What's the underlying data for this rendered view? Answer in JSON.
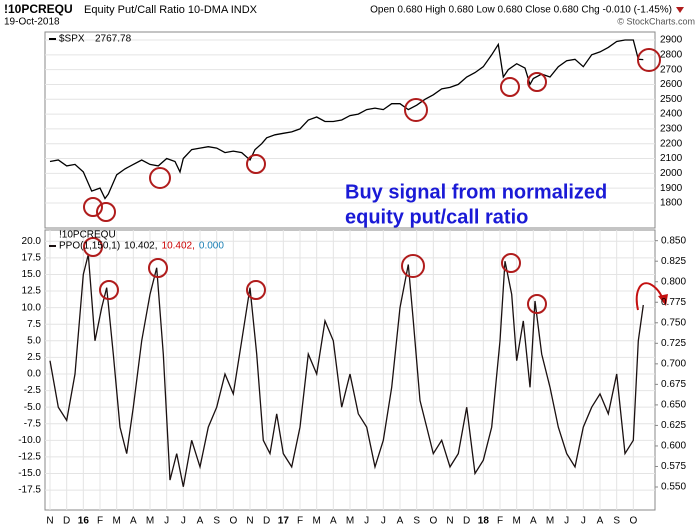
{
  "header": {
    "symbol": "!10PCREQU",
    "name": "Equity Put/Call Ratio 10-DMA INDX",
    "date": "19-Oct-2018",
    "quote": "Open 0.680  High 0.680  Low 0.680  Close 0.680  Chg -0.010 (-1.45%)",
    "source": "© StockCharts.com"
  },
  "annotations": [
    "Buy signal from normalized",
    "equity put/call ratio"
  ],
  "chart_data": [
    {
      "type": "line",
      "symbol": "$SPX",
      "last_value": "2767.78",
      "grid": true,
      "x": [
        0,
        0.5,
        1,
        1.5,
        2,
        2.5,
        3,
        3.3,
        3.5,
        4,
        4.5,
        5,
        5.5,
        6,
        6.5,
        7,
        7.5,
        7.8,
        8,
        8.5,
        9,
        9.5,
        10,
        10.5,
        11,
        11.5,
        12,
        12.3,
        12.7,
        13,
        13.5,
        14,
        14.5,
        15,
        15.5,
        16,
        16.5,
        17,
        17.5,
        18,
        18.5,
        19,
        19.5,
        20,
        20.5,
        21,
        21.5,
        22,
        22.5,
        23,
        23.5,
        24,
        24.5,
        25,
        25.5,
        26,
        26.5,
        26.9,
        27.2,
        27.5,
        28,
        28.5,
        28.8,
        29,
        29.5,
        30,
        30.5,
        31,
        31.5,
        32,
        32.5,
        33,
        33.5,
        34,
        34.5,
        35,
        35.3,
        35.6
      ],
      "series": [
        {
          "name": "$SPX",
          "color": "#000000",
          "values": [
            2080,
            2090,
            2050,
            2060,
            2010,
            1880,
            1900,
            1830,
            1860,
            1990,
            2030,
            2060,
            2090,
            2060,
            2050,
            2100,
            2080,
            2010,
            2100,
            2160,
            2170,
            2180,
            2170,
            2140,
            2150,
            2140,
            2090,
            2160,
            2200,
            2240,
            2260,
            2270,
            2280,
            2300,
            2360,
            2380,
            2350,
            2350,
            2360,
            2390,
            2400,
            2430,
            2440,
            2430,
            2470,
            2470,
            2430,
            2460,
            2500,
            2530,
            2570,
            2580,
            2600,
            2650,
            2680,
            2720,
            2800,
            2870,
            2650,
            2700,
            2740,
            2710,
            2600,
            2640,
            2670,
            2650,
            2720,
            2760,
            2770,
            2720,
            2800,
            2820,
            2850,
            2890,
            2900,
            2900,
            2770,
            2767.78
          ]
        }
      ],
      "xlim": [
        -0.3,
        36.3
      ],
      "ylim": [
        1631,
        2954
      ],
      "yticks": [
        1800,
        1900,
        2000,
        2100,
        2200,
        2300,
        2400,
        2500,
        2600,
        2700,
        2800,
        2900
      ]
    },
    {
      "type": "line",
      "symbol": "!10PCREQU",
      "grid": true,
      "readout": [
        {
          "text": "10.402,",
          "color": "#000000"
        },
        {
          "text": "10.402,",
          "color": "#cc0000"
        },
        {
          "text": "0.000",
          "color": "#1a7fb5"
        }
      ],
      "x": [
        0,
        0.5,
        1,
        1.5,
        2,
        2.3,
        2.7,
        3.1,
        3.4,
        3.8,
        4.2,
        4.6,
        5,
        5.5,
        6,
        6.4,
        6.8,
        7.2,
        7.6,
        8,
        8.5,
        9,
        9.5,
        10,
        10.5,
        11,
        11.5,
        12,
        12.4,
        12.8,
        13.2,
        13.6,
        14,
        14.5,
        15,
        15.5,
        16,
        16.5,
        17,
        17.5,
        18,
        18.5,
        19,
        19.5,
        20,
        20.5,
        21,
        21.5,
        21.8,
        22.2,
        22.6,
        23,
        23.5,
        24,
        24.5,
        25,
        25.5,
        26,
        26.5,
        27,
        27.3,
        27.7,
        28,
        28.4,
        28.8,
        29.1,
        29.5,
        30,
        30.5,
        31,
        31.5,
        32,
        32.5,
        33,
        33.5,
        34,
        34.5,
        35,
        35.3,
        35.6
      ],
      "series": [
        {
          "name": "PPO(1,150,1)",
          "color": "#1a1010",
          "values": [
            2,
            -5,
            -7,
            0,
            15,
            18,
            5,
            10,
            13,
            3,
            -8,
            -12,
            -5,
            5,
            12,
            16,
            3,
            -16,
            -12,
            -17,
            -10,
            -14,
            -8,
            -5,
            0,
            -3,
            5,
            13,
            3,
            -10,
            -12,
            -6,
            -12,
            -14,
            -8,
            3,
            0,
            8,
            5,
            -5,
            0,
            -6,
            -8,
            -14,
            -10,
            -2,
            10,
            16.5,
            8,
            -4,
            -8,
            -12,
            -10,
            -14,
            -12,
            -5,
            -15,
            -13,
            -8,
            5,
            17,
            12,
            2,
            8,
            -2,
            11,
            3,
            -2,
            -8,
            -12,
            -14,
            -8,
            -5,
            -3,
            -6,
            0,
            -12,
            -10,
            5,
            10.402
          ]
        }
      ],
      "xlim": [
        -0.3,
        36.3
      ],
      "xticks": [
        {
          "value": 0,
          "label": "N"
        },
        {
          "value": 1,
          "label": "D"
        },
        {
          "value": 2,
          "label": "16"
        },
        {
          "value": 3,
          "label": "F"
        },
        {
          "value": 4,
          "label": "M"
        },
        {
          "value": 5,
          "label": "A"
        },
        {
          "value": 6,
          "label": "M"
        },
        {
          "value": 7,
          "label": "J"
        },
        {
          "value": 8,
          "label": "J"
        },
        {
          "value": 9,
          "label": "A"
        },
        {
          "value": 10,
          "label": "S"
        },
        {
          "value": 11,
          "label": "O"
        },
        {
          "value": 12,
          "label": "N"
        },
        {
          "value": 13,
          "label": "D"
        },
        {
          "value": 14,
          "label": "17"
        },
        {
          "value": 15,
          "label": "F"
        },
        {
          "value": 16,
          "label": "M"
        },
        {
          "value": 17,
          "label": "A"
        },
        {
          "value": 18,
          "label": "M"
        },
        {
          "value": 19,
          "label": "J"
        },
        {
          "value": 20,
          "label": "J"
        },
        {
          "value": 21,
          "label": "A"
        },
        {
          "value": 22,
          "label": "S"
        },
        {
          "value": 23,
          "label": "O"
        },
        {
          "value": 24,
          "label": "N"
        },
        {
          "value": 25,
          "label": "D"
        },
        {
          "value": 26,
          "label": "18"
        },
        {
          "value": 27,
          "label": "F"
        },
        {
          "value": 28,
          "label": "M"
        },
        {
          "value": 29,
          "label": "A"
        },
        {
          "value": 30,
          "label": "M"
        },
        {
          "value": 31,
          "label": "J"
        },
        {
          "value": 32,
          "label": "J"
        },
        {
          "value": 33,
          "label": "A"
        },
        {
          "value": 34,
          "label": "S"
        },
        {
          "value": 35,
          "label": "O"
        }
      ],
      "ylim": [
        -20.5,
        21.7
      ],
      "yticks": [
        {
          "value": 20,
          "label": "20.0"
        },
        17.5,
        {
          "value": 15,
          "label": "15.0"
        },
        12.5,
        {
          "value": 10,
          "label": "10.0"
        },
        7.5,
        {
          "value": 5,
          "label": "5.0"
        },
        2.5,
        {
          "value": 0,
          "label": "0.0"
        },
        -2.5,
        {
          "value": -5,
          "label": "-5.0"
        },
        -7.5,
        {
          "value": -10,
          "label": "-10.0"
        },
        -12.5,
        {
          "value": -15,
          "label": "-15.0"
        },
        -17.5
      ],
      "y2lim": [
        0.522,
        0.863
      ],
      "y2ticks": [
        {
          "value": 0.85,
          "label": "0.850"
        },
        {
          "value": 0.825,
          "label": "0.825"
        },
        {
          "value": 0.8,
          "label": "0.800"
        },
        {
          "value": 0.775,
          "label": "0.775"
        },
        {
          "value": 0.75,
          "label": "0.750"
        },
        {
          "value": 0.725,
          "label": "0.725"
        },
        {
          "value": 0.7,
          "label": "0.700"
        },
        {
          "value": 0.675,
          "label": "0.675"
        },
        {
          "value": 0.65,
          "label": "0.650"
        },
        {
          "value": 0.625,
          "label": "0.625"
        },
        {
          "value": 0.6,
          "label": "0.600"
        },
        {
          "value": 0.575,
          "label": "0.575"
        },
        {
          "value": 0.55,
          "label": "0.550"
        }
      ]
    }
  ]
}
